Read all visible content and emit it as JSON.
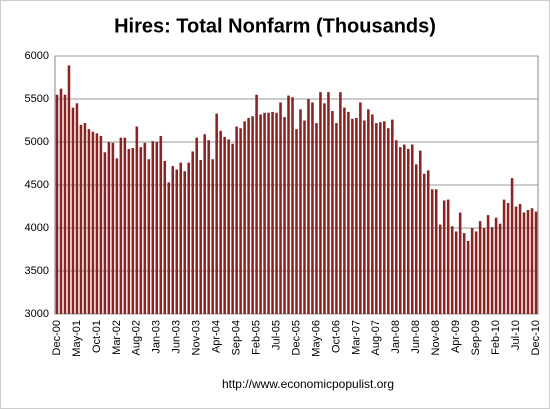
{
  "chart_data": {
    "type": "bar",
    "title": "Hires: Total Nonfarm (Thousands)",
    "source": "http://www.economicpopulist.org",
    "categories": [
      "Dec-00",
      null,
      null,
      null,
      null,
      "May-01",
      null,
      null,
      null,
      null,
      "Oct-01",
      null,
      null,
      null,
      null,
      "Mar-02",
      null,
      null,
      null,
      null,
      "Aug-02",
      null,
      null,
      null,
      null,
      "Jan-03",
      null,
      null,
      null,
      null,
      "Jun-03",
      null,
      null,
      null,
      null,
      "Nov-03",
      null,
      null,
      null,
      null,
      "Apr-04",
      null,
      null,
      null,
      null,
      "Sep-04",
      null,
      null,
      null,
      null,
      "Feb-05",
      null,
      null,
      null,
      null,
      "Jul-05",
      null,
      null,
      null,
      null,
      "Dec-05",
      null,
      null,
      null,
      null,
      "May-06",
      null,
      null,
      null,
      null,
      "Oct-06",
      null,
      null,
      null,
      null,
      "Mar-07",
      null,
      null,
      null,
      null,
      "Aug-07",
      null,
      null,
      null,
      null,
      "Jan-08",
      null,
      null,
      null,
      null,
      "Jun-08",
      null,
      null,
      null,
      null,
      "Nov-08",
      null,
      null,
      null,
      null,
      "Apr-09",
      null,
      null,
      null,
      null,
      "Sep-09",
      null,
      null,
      null,
      null,
      "Feb-10",
      null,
      null,
      null,
      null,
      "Jul-10",
      null,
      null,
      null,
      null,
      "Dec-10"
    ],
    "values": [
      5550,
      5620,
      5550,
      5890,
      5400,
      5450,
      5200,
      5220,
      5150,
      5120,
      5100,
      5070,
      4880,
      5000,
      4990,
      4810,
      5050,
      5050,
      4920,
      4930,
      5180,
      4940,
      4990,
      4800,
      5010,
      5000,
      5070,
      4780,
      4530,
      4720,
      4680,
      4760,
      4660,
      4760,
      4890,
      5050,
      4790,
      5090,
      5020,
      4800,
      5330,
      5130,
      5060,
      5030,
      4980,
      5180,
      5160,
      5240,
      5280,
      5300,
      5550,
      5320,
      5340,
      5340,
      5350,
      5340,
      5460,
      5290,
      5540,
      5520,
      5150,
      5380,
      5250,
      5500,
      5460,
      5220,
      5580,
      5450,
      5580,
      5360,
      5220,
      5580,
      5400,
      5350,
      5270,
      5280,
      5460,
      5250,
      5380,
      5320,
      5220,
      5230,
      5240,
      5160,
      5260,
      5020,
      4940,
      4970,
      4920,
      4970,
      4740,
      4900,
      4630,
      4670,
      4450,
      4450,
      4040,
      4320,
      4330,
      4020,
      3960,
      4180,
      3940,
      3850,
      4000,
      3960,
      4080,
      4000,
      4150,
      4010,
      4120,
      4050,
      4330,
      4290,
      4580,
      4250,
      4280,
      4180,
      4210,
      4230,
      4190
    ],
    "color": "#8b2323",
    "ylim": [
      3000,
      6000
    ],
    "yticks": [
      3000,
      3500,
      4000,
      4500,
      5000,
      5500,
      6000
    ],
    "grid": true
  }
}
